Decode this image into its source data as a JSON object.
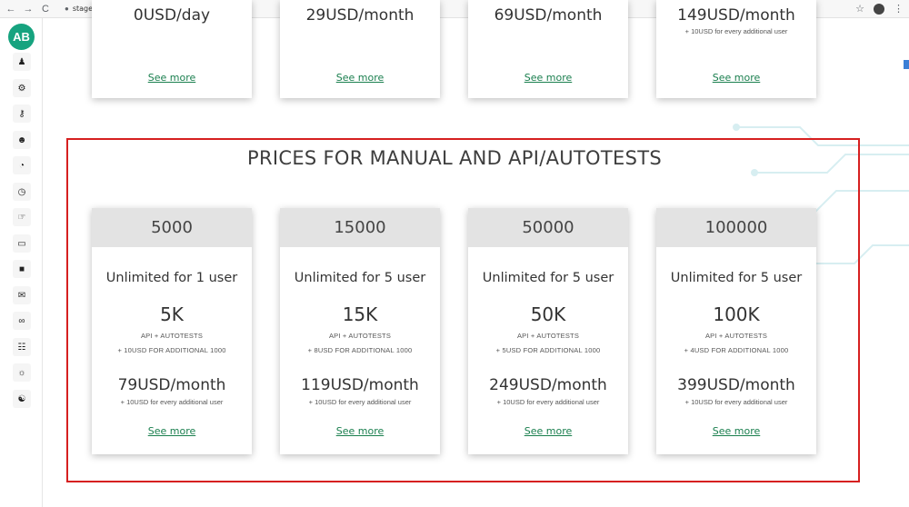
{
  "browser": {
    "url": "stage.testmyoffers.com/prices",
    "back": "←",
    "forward": "→",
    "reload": "C",
    "star": "☆"
  },
  "sidebar": {
    "avatar": "AB",
    "icons": [
      "user-edit-icon",
      "cogs-icon",
      "key-icon",
      "users-icon",
      "pie-chart-icon",
      "clock-icon",
      "hand-coin-icon",
      "credit-card-icon",
      "lock-icon",
      "chat-icon",
      "link-icon",
      "sitemap-icon",
      "gear-outline-icon",
      "handshake-icon"
    ]
  },
  "top_cards": [
    {
      "price": "0USD/day",
      "note": "",
      "see_more": "See more"
    },
    {
      "price": "29USD/month",
      "note": "",
      "see_more": "See more"
    },
    {
      "price": "69USD/month",
      "note": "",
      "see_more": "See more"
    },
    {
      "price": "149USD/month",
      "note": "+ 10USD for every additional user",
      "see_more": "See more"
    }
  ],
  "section": {
    "title": "PRICES FOR MANUAL AND API/AUTOTESTS"
  },
  "cards": [
    {
      "header": "5000",
      "users": "Unlimited for 1 user",
      "volume": "5K",
      "api_label": "API + AUTOTESTS",
      "additional": "+ 10USD FOR ADDITIONAL 1000",
      "price": "79USD/month",
      "note": "+ 10USD for every additional user",
      "see_more": "See more"
    },
    {
      "header": "15000",
      "users": "Unlimited for 5 user",
      "volume": "15K",
      "api_label": "API + AUTOTESTS",
      "additional": "+ 8USD FOR ADDITIONAL 1000",
      "price": "119USD/month",
      "note": "+ 10USD for every additional user",
      "see_more": "See more"
    },
    {
      "header": "50000",
      "users": "Unlimited for 5 user",
      "volume": "50K",
      "api_label": "API + AUTOTESTS",
      "additional": "+ 5USD FOR ADDITIONAL 1000",
      "price": "249USD/month",
      "note": "+ 10USD for every additional user",
      "see_more": "See more"
    },
    {
      "header": "100000",
      "users": "Unlimited for 5 user",
      "volume": "100K",
      "api_label": "API + AUTOTESTS",
      "additional": "+ 4USD FOR ADDITIONAL 1000",
      "price": "399USD/month",
      "note": "+ 10USD for every additional user",
      "see_more": "See more"
    }
  ],
  "colors": {
    "accent": "#16a37f",
    "link": "#1a7f4e",
    "highlight": "#d62020",
    "card_header": "#e3e3e3"
  }
}
